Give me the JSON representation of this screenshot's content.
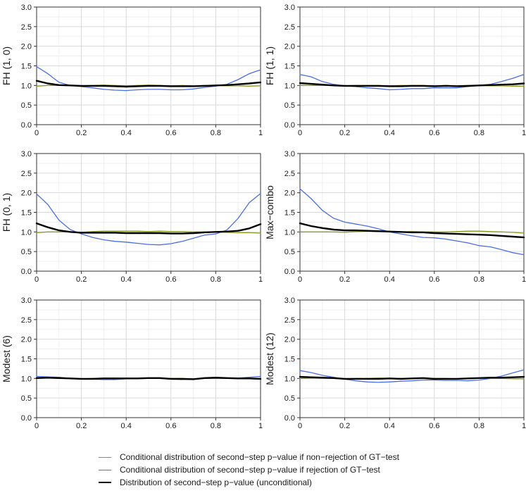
{
  "chart_data": {
    "type": "line",
    "xlim": [
      0,
      1
    ],
    "ylim": [
      0,
      3
    ],
    "x_ticks": [
      "0",
      "0.2",
      "0.4",
      "0.6",
      "0.8",
      "1"
    ],
    "y_ticks": [
      "0.0",
      "0.5",
      "1.0",
      "1.5",
      "2.0",
      "2.5",
      "3.0"
    ],
    "colors": {
      "green": "#8a9a1e",
      "blue": "#4a6fe0",
      "black": "#000000"
    },
    "legend": {
      "position": "bottom",
      "entries": [
        {
          "label": "Conditional distribution of second−step p−value if non−rejection of GT−test",
          "color": "#8a9a1e"
        },
        {
          "label": "Conditional distribution of second−step p−value if rejection of GT−test",
          "color": "#4a6fe0"
        },
        {
          "label": "Distribution of second−step p−value (unconditional)",
          "color": "#000000"
        }
      ]
    },
    "panels": [
      {
        "ylabel": "FH (1, 0)",
        "x": [
          0,
          0.05,
          0.1,
          0.15,
          0.2,
          0.25,
          0.3,
          0.35,
          0.4,
          0.45,
          0.5,
          0.55,
          0.6,
          0.65,
          0.7,
          0.75,
          0.8,
          0.85,
          0.9,
          0.95,
          1
        ],
        "series": [
          {
            "name": "non-rejection",
            "color": "#8a9a1e",
            "values": [
              0.98,
              1.0,
              1.0,
              1.0,
              0.99,
              1.0,
              1.01,
              1.0,
              0.99,
              1.0,
              1.01,
              1.0,
              0.99,
              1.0,
              0.99,
              1.0,
              1.0,
              0.99,
              0.99,
              0.98,
              0.99
            ]
          },
          {
            "name": "rejection",
            "color": "#4a6fe0",
            "values": [
              1.48,
              1.3,
              1.08,
              1.0,
              0.97,
              0.94,
              0.9,
              0.88,
              0.87,
              0.89,
              0.9,
              0.9,
              0.89,
              0.89,
              0.91,
              0.95,
              0.98,
              1.03,
              1.15,
              1.3,
              1.4
            ]
          },
          {
            "name": "unconditional",
            "color": "#000000",
            "values": [
              1.12,
              1.05,
              1.01,
              1.0,
              0.99,
              0.99,
              0.99,
              0.98,
              0.97,
              0.98,
              0.99,
              0.99,
              0.98,
              0.98,
              0.98,
              0.99,
              1.0,
              1.01,
              1.03,
              1.05,
              1.08
            ]
          }
        ]
      },
      {
        "ylabel": "FH (1, 1)",
        "x": [
          0,
          0.05,
          0.1,
          0.15,
          0.2,
          0.25,
          0.3,
          0.35,
          0.4,
          0.45,
          0.5,
          0.55,
          0.6,
          0.65,
          0.7,
          0.75,
          0.8,
          0.85,
          0.9,
          0.95,
          1
        ],
        "series": [
          {
            "name": "non-rejection",
            "color": "#8a9a1e",
            "values": [
              1.0,
              1.0,
              1.0,
              1.0,
              0.99,
              1.0,
              1.0,
              1.0,
              0.99,
              1.0,
              1.0,
              1.0,
              0.99,
              1.0,
              0.99,
              1.0,
              1.0,
              0.99,
              0.99,
              0.98,
              0.98
            ]
          },
          {
            "name": "rejection",
            "color": "#4a6fe0",
            "values": [
              1.28,
              1.22,
              1.1,
              1.03,
              0.99,
              0.97,
              0.94,
              0.92,
              0.89,
              0.9,
              0.92,
              0.92,
              0.94,
              0.94,
              0.94,
              0.97,
              1.0,
              1.03,
              1.1,
              1.18,
              1.28
            ]
          },
          {
            "name": "unconditional",
            "color": "#000000",
            "values": [
              1.06,
              1.04,
              1.02,
              1.0,
              0.99,
              0.99,
              0.99,
              0.99,
              0.98,
              0.98,
              0.99,
              0.99,
              0.98,
              0.99,
              0.98,
              0.99,
              1.0,
              1.01,
              1.02,
              1.03,
              1.05
            ]
          }
        ]
      },
      {
        "ylabel": "FH (0, 1)",
        "x": [
          0,
          0.05,
          0.1,
          0.15,
          0.2,
          0.25,
          0.3,
          0.35,
          0.4,
          0.45,
          0.5,
          0.55,
          0.6,
          0.65,
          0.7,
          0.75,
          0.8,
          0.85,
          0.9,
          0.95,
          1
        ],
        "series": [
          {
            "name": "non-rejection",
            "color": "#8a9a1e",
            "values": [
              0.98,
              1.0,
              1.0,
              1.0,
              0.99,
              1.01,
              1.02,
              1.02,
              1.02,
              1.02,
              1.01,
              1.02,
              1.01,
              1.01,
              1.0,
              1.0,
              1.0,
              0.99,
              0.98,
              0.98,
              0.97
            ]
          },
          {
            "name": "rejection",
            "color": "#4a6fe0",
            "values": [
              1.97,
              1.7,
              1.3,
              1.06,
              0.95,
              0.86,
              0.8,
              0.76,
              0.74,
              0.71,
              0.68,
              0.67,
              0.7,
              0.76,
              0.84,
              0.92,
              0.95,
              1.05,
              1.35,
              1.75,
              1.98
            ]
          },
          {
            "name": "unconditional",
            "color": "#000000",
            "values": [
              1.22,
              1.12,
              1.04,
              1.0,
              0.98,
              0.98,
              0.98,
              0.98,
              0.97,
              0.97,
              0.97,
              0.97,
              0.96,
              0.96,
              0.97,
              0.99,
              1.0,
              1.01,
              1.03,
              1.09,
              1.2
            ]
          }
        ]
      },
      {
        "ylabel": "Max−combo",
        "x": [
          0,
          0.05,
          0.1,
          0.15,
          0.2,
          0.25,
          0.3,
          0.35,
          0.4,
          0.45,
          0.5,
          0.55,
          0.6,
          0.65,
          0.7,
          0.75,
          0.8,
          0.85,
          0.9,
          0.95,
          1
        ],
        "series": [
          {
            "name": "non-rejection",
            "color": "#8a9a1e",
            "values": [
              1.0,
              1.0,
              1.0,
              1.0,
              0.99,
              1.01,
              1.02,
              1.01,
              1.01,
              1.0,
              1.01,
              1.0,
              1.0,
              1.0,
              1.01,
              1.02,
              1.02,
              1.01,
              1.0,
              0.99,
              0.97
            ]
          },
          {
            "name": "rejection",
            "color": "#4a6fe0",
            "values": [
              2.1,
              1.85,
              1.55,
              1.35,
              1.25,
              1.2,
              1.15,
              1.08,
              1.0,
              0.95,
              0.9,
              0.86,
              0.85,
              0.82,
              0.77,
              0.72,
              0.65,
              0.62,
              0.55,
              0.47,
              0.42
            ]
          },
          {
            "name": "unconditional",
            "color": "#000000",
            "values": [
              1.22,
              1.15,
              1.1,
              1.06,
              1.04,
              1.04,
              1.03,
              1.02,
              1.01,
              1.0,
              0.99,
              0.99,
              0.97,
              0.96,
              0.95,
              0.94,
              0.93,
              0.92,
              0.9,
              0.88,
              0.86
            ]
          }
        ]
      },
      {
        "ylabel": "Modest (6)",
        "x": [
          0,
          0.05,
          0.1,
          0.15,
          0.2,
          0.25,
          0.3,
          0.35,
          0.4,
          0.45,
          0.5,
          0.55,
          0.6,
          0.65,
          0.7,
          0.75,
          0.8,
          0.85,
          0.9,
          0.95,
          1
        ],
        "series": [
          {
            "name": "non-rejection",
            "color": "#8a9a1e",
            "values": [
              1.0,
              1.01,
              1.0,
              1.0,
              0.99,
              1.0,
              1.01,
              1.01,
              1.0,
              1.0,
              1.01,
              1.01,
              1.0,
              1.0,
              0.99,
              1.01,
              1.02,
              1.01,
              1.0,
              0.99,
              0.99
            ]
          },
          {
            "name": "rejection",
            "color": "#4a6fe0",
            "values": [
              1.05,
              1.04,
              1.03,
              1.0,
              0.99,
              0.98,
              0.97,
              0.97,
              0.99,
              1.0,
              1.0,
              1.0,
              0.98,
              0.97,
              0.98,
              1.0,
              1.0,
              1.0,
              1.01,
              1.03,
              1.05
            ]
          },
          {
            "name": "unconditional",
            "color": "#000000",
            "values": [
              1.01,
              1.02,
              1.01,
              1.0,
              0.99,
              0.99,
              1.0,
              1.0,
              1.0,
              1.0,
              1.01,
              1.01,
              0.99,
              0.99,
              0.98,
              1.01,
              1.02,
              1.01,
              1.0,
              1.0,
              0.99
            ]
          }
        ]
      },
      {
        "ylabel": "Modest (12)",
        "x": [
          0,
          0.05,
          0.1,
          0.15,
          0.2,
          0.25,
          0.3,
          0.35,
          0.4,
          0.45,
          0.5,
          0.55,
          0.6,
          0.65,
          0.7,
          0.75,
          0.8,
          0.85,
          0.9,
          0.95,
          1
        ],
        "series": [
          {
            "name": "non-rejection",
            "color": "#8a9a1e",
            "values": [
              1.0,
              1.01,
              1.0,
              1.0,
              0.99,
              1.0,
              1.0,
              1.01,
              1.0,
              1.0,
              1.0,
              1.01,
              1.0,
              1.0,
              0.99,
              1.0,
              1.01,
              1.0,
              1.0,
              0.99,
              0.99
            ]
          },
          {
            "name": "rejection",
            "color": "#4a6fe0",
            "values": [
              1.2,
              1.15,
              1.08,
              1.03,
              0.98,
              0.94,
              0.91,
              0.9,
              0.91,
              0.93,
              0.94,
              0.96,
              0.96,
              0.95,
              0.95,
              0.94,
              0.96,
              1.0,
              1.06,
              1.14,
              1.22
            ]
          },
          {
            "name": "unconditional",
            "color": "#000000",
            "values": [
              1.04,
              1.03,
              1.02,
              1.01,
              0.99,
              0.99,
              0.99,
              0.99,
              1.0,
              0.99,
              1.0,
              1.01,
              0.99,
              0.99,
              0.99,
              1.0,
              1.01,
              1.02,
              1.02,
              1.03,
              1.04
            ]
          }
        ]
      }
    ]
  }
}
